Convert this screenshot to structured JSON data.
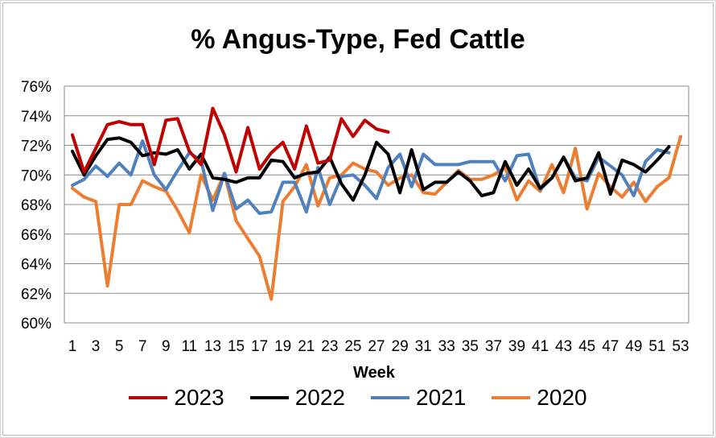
{
  "chart_data": {
    "type": "line",
    "title": "% Angus-Type, Fed Cattle",
    "xlabel": "Week",
    "ylabel": "",
    "ylim": [
      60,
      76
    ],
    "yticks": [
      "60%",
      "62%",
      "64%",
      "66%",
      "68%",
      "70%",
      "72%",
      "74%",
      "76%"
    ],
    "xlim": [
      1,
      53
    ],
    "xticks": [
      "1",
      "3",
      "5",
      "7",
      "9",
      "11",
      "13",
      "15",
      "17",
      "19",
      "21",
      "23",
      "25",
      "27",
      "29",
      "31",
      "33",
      "35",
      "37",
      "39",
      "41",
      "43",
      "45",
      "47",
      "49",
      "51",
      "53"
    ],
    "grid": "horizontal",
    "legend": "bottom",
    "series": [
      {
        "name": "2023",
        "color": "#C00000",
        "x": [
          1,
          2,
          3,
          4,
          5,
          6,
          7,
          8,
          9,
          10,
          11,
          12,
          13,
          14,
          15,
          16,
          17,
          18,
          19,
          20,
          21,
          22,
          23,
          24,
          25,
          26,
          27,
          28
        ],
        "values": [
          72.7,
          70.2,
          71.8,
          73.4,
          73.6,
          73.4,
          73.4,
          70.7,
          73.7,
          73.8,
          71.6,
          70.7,
          74.5,
          72.7,
          70.2,
          73.2,
          70.4,
          71.5,
          72.2,
          70.4,
          73.3,
          70.8,
          71.0,
          73.8,
          72.6,
          73.7,
          73.1,
          72.9
        ]
      },
      {
        "name": "2022",
        "color": "#000000",
        "x": [
          1,
          2,
          3,
          4,
          5,
          6,
          7,
          8,
          9,
          10,
          11,
          12,
          13,
          14,
          15,
          16,
          17,
          18,
          19,
          20,
          21,
          22,
          23,
          24,
          25,
          26,
          27,
          28,
          29,
          30,
          31,
          32,
          33,
          34,
          35,
          36,
          37,
          38,
          39,
          40,
          41,
          42,
          43,
          44,
          45,
          46,
          47,
          48,
          49,
          50,
          51,
          52
        ],
        "values": [
          71.6,
          70.0,
          71.3,
          72.4,
          72.5,
          72.2,
          71.3,
          71.5,
          71.4,
          71.7,
          70.4,
          71.4,
          69.8,
          69.7,
          69.5,
          69.8,
          69.8,
          71.0,
          70.9,
          69.8,
          70.1,
          70.2,
          71.2,
          69.4,
          68.3,
          70.0,
          72.2,
          71.4,
          68.8,
          71.7,
          69.0,
          69.5,
          69.5,
          70.2,
          69.6,
          68.6,
          68.8,
          70.9,
          69.3,
          70.4,
          69.1,
          69.8,
          71.2,
          69.6,
          69.8,
          71.5,
          68.7,
          71.0,
          70.7,
          70.2,
          71.0,
          71.9
        ]
      },
      {
        "name": "2021",
        "color": "#4F81BD",
        "x": [
          1,
          2,
          3,
          4,
          5,
          6,
          7,
          8,
          9,
          10,
          11,
          12,
          13,
          14,
          15,
          16,
          17,
          18,
          19,
          20,
          21,
          22,
          23,
          24,
          25,
          26,
          27,
          28,
          29,
          30,
          31,
          32,
          33,
          34,
          35,
          36,
          37,
          38,
          39,
          40,
          41,
          42,
          43,
          44,
          45,
          46,
          47,
          48,
          49,
          50,
          51,
          52
        ],
        "values": [
          69.3,
          69.7,
          70.6,
          69.9,
          70.8,
          70.0,
          72.3,
          70.0,
          69.0,
          70.3,
          71.5,
          71.0,
          67.6,
          70.1,
          67.7,
          68.3,
          67.4,
          67.5,
          69.5,
          69.5,
          67.5,
          70.5,
          68.0,
          69.9,
          70.0,
          69.3,
          68.4,
          70.5,
          71.4,
          69.2,
          71.4,
          70.7,
          70.7,
          70.7,
          70.9,
          70.9,
          70.9,
          69.6,
          71.3,
          71.4,
          69.0,
          69.8,
          71.2,
          69.8,
          69.6,
          71.2,
          70.6,
          70.0,
          68.6,
          70.9,
          71.7,
          71.5
        ]
      },
      {
        "name": "2020",
        "color": "#ED7D31",
        "x": [
          1,
          2,
          3,
          4,
          5,
          6,
          7,
          8,
          9,
          10,
          11,
          12,
          13,
          14,
          15,
          16,
          17,
          18,
          19,
          20,
          21,
          22,
          23,
          24,
          25,
          26,
          27,
          28,
          29,
          30,
          31,
          32,
          33,
          34,
          35,
          36,
          37,
          38,
          39,
          40,
          41,
          42,
          43,
          44,
          45,
          46,
          47,
          48,
          49,
          50,
          51,
          52,
          53
        ],
        "values": [
          69.1,
          68.5,
          68.2,
          62.5,
          68.0,
          68.0,
          69.6,
          69.2,
          68.9,
          67.6,
          66.1,
          70.0,
          68.3,
          70.1,
          66.9,
          65.7,
          64.5,
          61.6,
          68.2,
          69.2,
          70.7,
          67.9,
          69.8,
          70.0,
          70.8,
          70.4,
          70.2,
          69.3,
          69.8,
          70.0,
          68.8,
          68.7,
          69.5,
          70.3,
          69.7,
          69.7,
          70.0,
          70.5,
          68.3,
          69.6,
          68.9,
          70.7,
          68.8,
          71.8,
          67.7,
          70.1,
          69.2,
          68.5,
          69.5,
          68.2,
          69.2,
          69.8,
          72.6
        ]
      }
    ]
  }
}
